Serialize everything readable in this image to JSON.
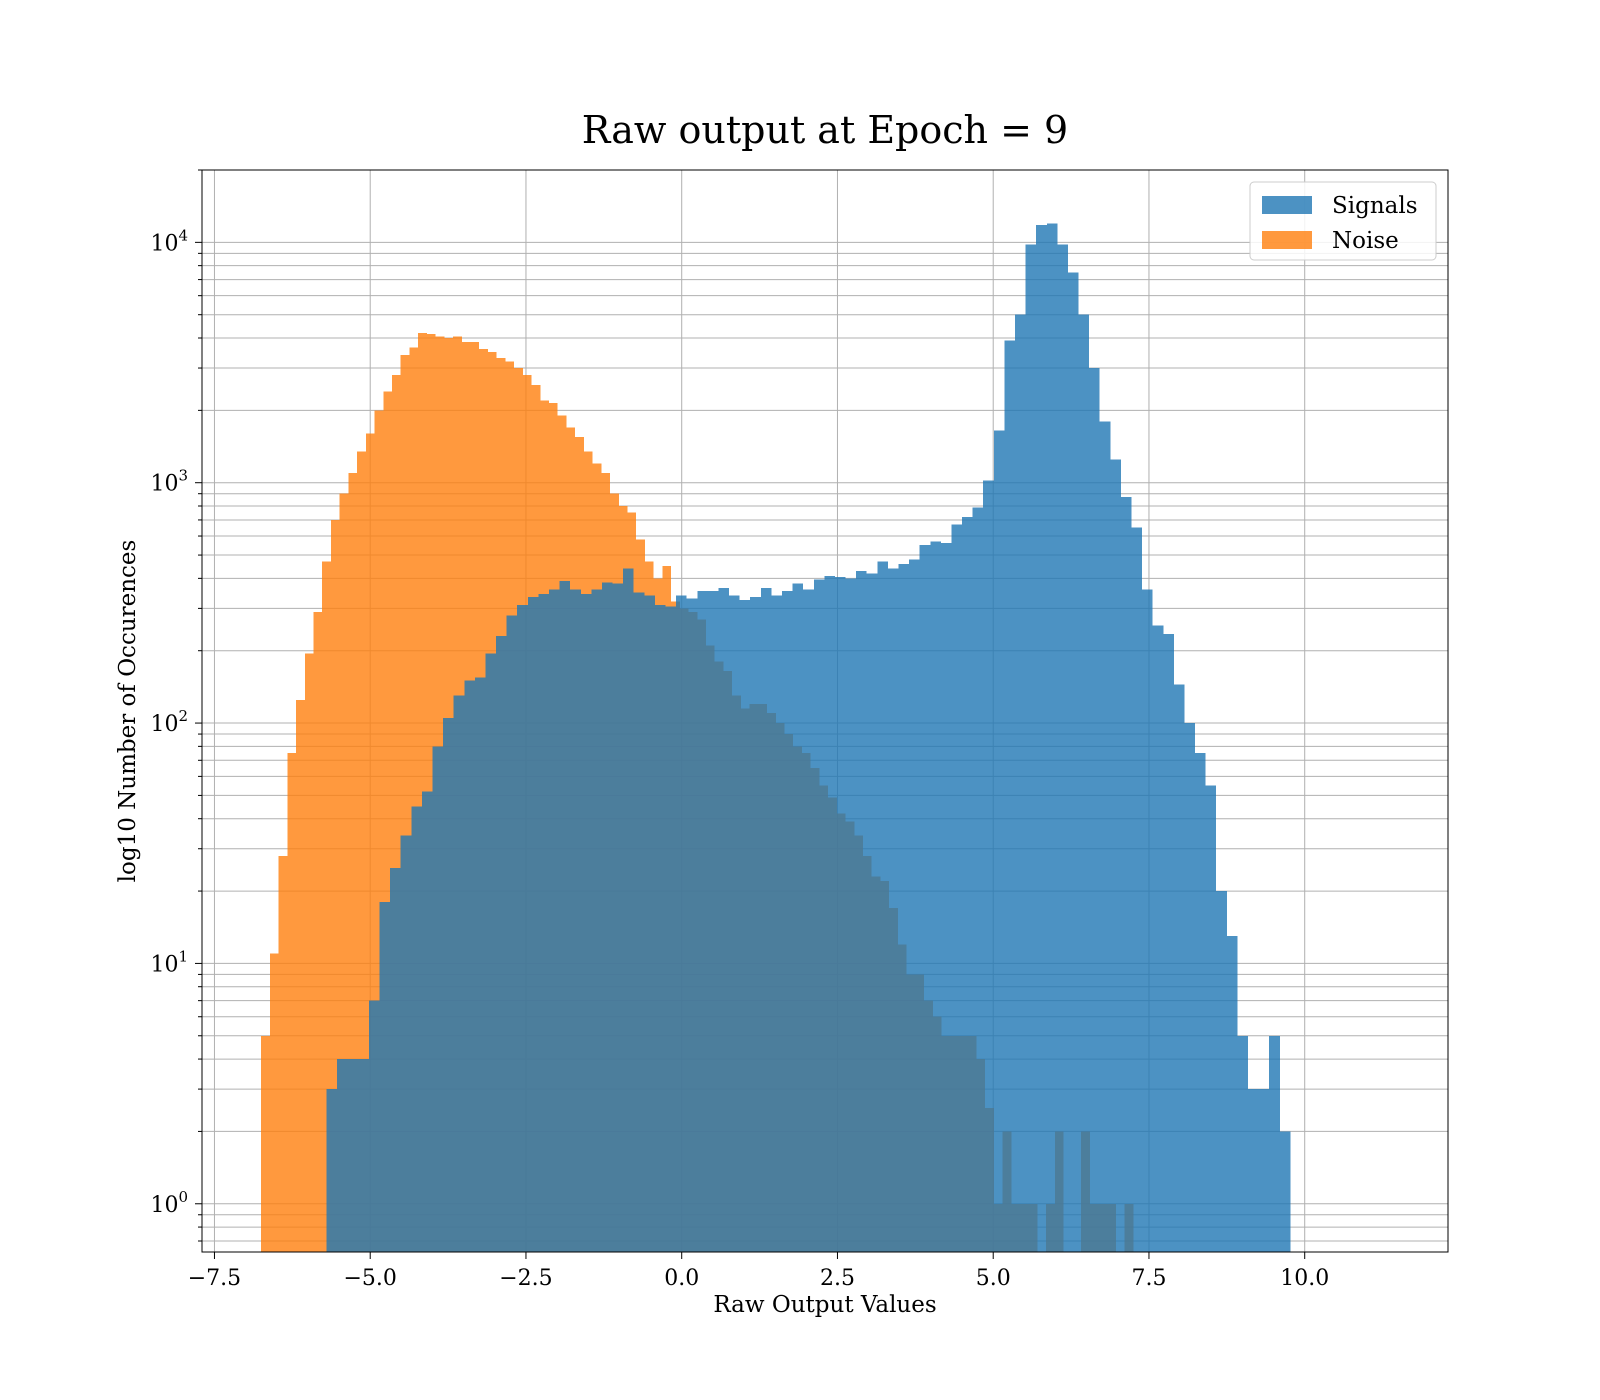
{
  "chart_data": {
    "type": "bar",
    "title": "Raw output at Epoch = 9",
    "xlabel": "Raw Output Values",
    "ylabel": "log10 Number of Occurences",
    "xlim": [
      -7.7,
      12.3
    ],
    "ylim": [
      0.63,
      20000
    ],
    "yscale": "log",
    "grid": "both, major and minor on y",
    "legend_position": "top-right",
    "x_ticks": [
      -7.5,
      -5.0,
      -2.5,
      0.0,
      2.5,
      5.0,
      7.5,
      10.0
    ],
    "x_tick_labels": [
      "−7.5",
      "−5.0",
      "−2.5",
      "0.0",
      "2.5",
      "5.0",
      "7.5",
      "10.0"
    ],
    "y_ticks": [
      {
        "base": "10",
        "exp": "0",
        "value": 1
      },
      {
        "base": "10",
        "exp": "1",
        "value": 10
      },
      {
        "base": "10",
        "exp": "2",
        "value": 100
      },
      {
        "base": "10",
        "exp": "3",
        "value": 1000
      },
      {
        "base": "10",
        "exp": "4",
        "value": 10000
      }
    ],
    "series": [
      {
        "name": "Signals",
        "color": "#1f77b4",
        "opacity": 0.8,
        "bin_start": -5.7,
        "bin_width": 0.17,
        "values": [
          3,
          4,
          4,
          4,
          7,
          18,
          25,
          34,
          45,
          52,
          80,
          105,
          130,
          150,
          155,
          195,
          230,
          280,
          310,
          335,
          345,
          360,
          390,
          360,
          345,
          360,
          385,
          380,
          440,
          350,
          340,
          310,
          305,
          340,
          330,
          355,
          355,
          365,
          340,
          325,
          335,
          365,
          340,
          355,
          380,
          360,
          395,
          410,
          405,
          400,
          430,
          420,
          470,
          440,
          460,
          480,
          550,
          570,
          560,
          670,
          720,
          790,
          1020,
          1650,
          3900,
          5000,
          9800,
          11800,
          12000,
          9800,
          7500,
          5000,
          3000,
          1800,
          1250,
          870,
          650,
          360,
          255,
          235,
          145,
          100,
          75,
          55,
          20,
          13,
          5,
          3,
          3,
          5,
          2
        ]
      },
      {
        "name": "Noise",
        "color": "#ff7f0e",
        "opacity": 0.8,
        "bin_start": -6.75,
        "bin_width": 0.14,
        "values": [
          5,
          11,
          28,
          75,
          125,
          195,
          290,
          470,
          700,
          900,
          1100,
          1350,
          1600,
          2000,
          2400,
          2800,
          3400,
          3650,
          4200,
          4150,
          4050,
          4000,
          4050,
          3850,
          3850,
          3600,
          3500,
          3300,
          3200,
          3000,
          2800,
          2550,
          2200,
          2150,
          1900,
          1700,
          1550,
          1350,
          1200,
          1100,
          900,
          800,
          750,
          580,
          470,
          400,
          450,
          320,
          300,
          290,
          270,
          210,
          180,
          165,
          130,
          115,
          120,
          120,
          110,
          100,
          90,
          80,
          75,
          65,
          55,
          49,
          42,
          39,
          34,
          28,
          23,
          22,
          17,
          12,
          9,
          9,
          7,
          6,
          5,
          5,
          5,
          5,
          4,
          2.5,
          1,
          2,
          1,
          1,
          1,
          0,
          1,
          2,
          0,
          0,
          2,
          1,
          1,
          1,
          0,
          1
        ]
      }
    ]
  }
}
